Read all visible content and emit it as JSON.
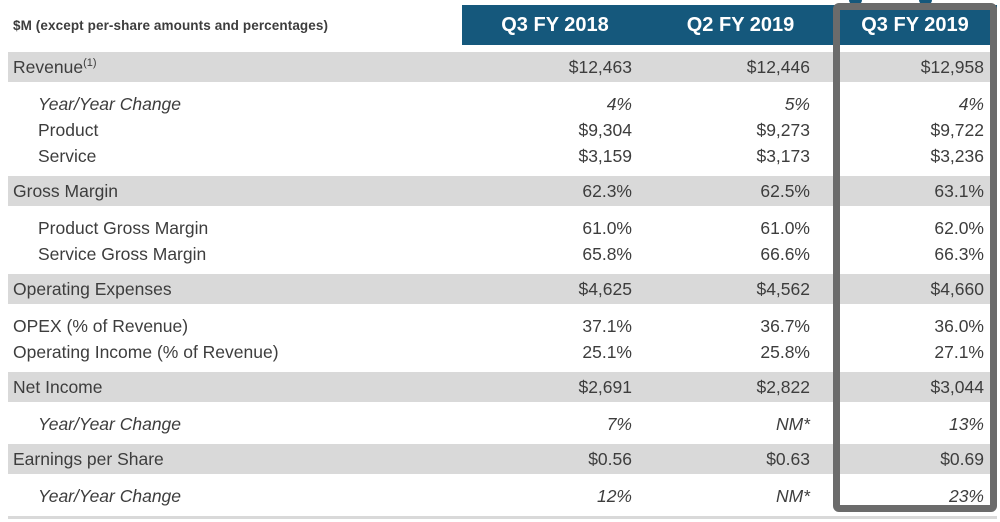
{
  "colors": {
    "header_bg": "#15587C",
    "header_text": "#FFFFFF",
    "row_shade": "#D9D9D9",
    "highlight_border": "#6B6B6B",
    "text": "#3D3D3D"
  },
  "table": {
    "unit_label": "$M (except per-share amounts and percentages)",
    "columns": [
      "Q3 FY 2018",
      "Q2 FY 2019",
      "Q3 FY 2019"
    ],
    "highlighted_column": "Q3 FY 2019",
    "rows": [
      {
        "label": "Revenue",
        "sup": "(1)",
        "style": "section",
        "values": [
          "$12,463",
          "$12,446",
          "$12,958"
        ]
      },
      {
        "label": "Year/Year Change",
        "style": "sub_italic",
        "values": [
          "4%",
          "5%",
          "4%"
        ]
      },
      {
        "label": "Product",
        "style": "sub",
        "values": [
          "$9,304",
          "$9,273",
          "$9,722"
        ]
      },
      {
        "label": "Service",
        "style": "sub",
        "values": [
          "$3,159",
          "$3,173",
          "$3,236"
        ]
      },
      {
        "label": "Gross Margin",
        "style": "section",
        "values": [
          "62.3%",
          "62.5%",
          "63.1%"
        ]
      },
      {
        "label": "Product Gross Margin",
        "style": "sub",
        "values": [
          "61.0%",
          "61.0%",
          "62.0%"
        ]
      },
      {
        "label": "Service Gross Margin",
        "style": "sub",
        "values": [
          "65.8%",
          "66.6%",
          "66.3%"
        ]
      },
      {
        "label": "Operating Expenses",
        "style": "section",
        "values": [
          "$4,625",
          "$4,562",
          "$4,660"
        ]
      },
      {
        "label": "OPEX (% of Revenue)",
        "style": "plain",
        "values": [
          "37.1%",
          "36.7%",
          "36.0%"
        ]
      },
      {
        "label": "Operating Income (% of Revenue)",
        "style": "plain",
        "values": [
          "25.1%",
          "25.8%",
          "27.1%"
        ]
      },
      {
        "label": "Net Income",
        "style": "section",
        "values": [
          "$2,691",
          "$2,822",
          "$3,044"
        ]
      },
      {
        "label": "Year/Year Change",
        "style": "sub_italic",
        "values": [
          "7%",
          "NM*",
          "13%"
        ]
      },
      {
        "label": "Earnings per Share",
        "style": "section",
        "values": [
          "$0.56",
          "$0.63",
          "$0.69"
        ]
      },
      {
        "label": "Year/Year Change",
        "style": "sub_italic",
        "values": [
          "12%",
          "NM*",
          "23%"
        ]
      }
    ]
  }
}
